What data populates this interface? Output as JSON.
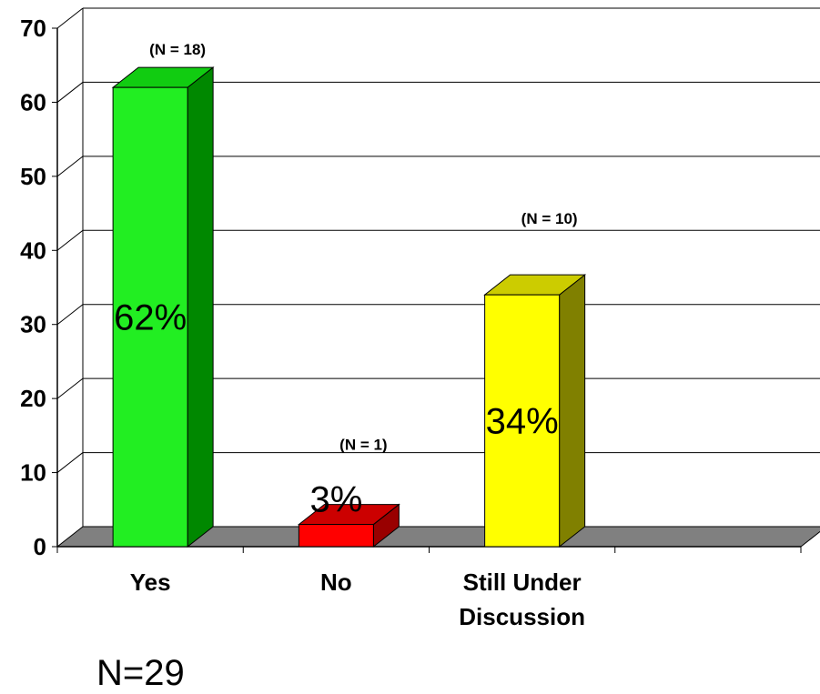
{
  "chart_data": {
    "type": "bar",
    "categories": [
      "Yes",
      "No",
      "Still Under Discussion"
    ],
    "category_lines": [
      [
        "Yes"
      ],
      [
        "No"
      ],
      [
        "Still Under",
        "Discussion"
      ]
    ],
    "values": [
      62,
      3,
      34
    ],
    "value_labels": [
      "62%",
      "3%",
      "34%"
    ],
    "n_labels": [
      "(N = 18)",
      "(N = 1)",
      "(N = 10)"
    ],
    "ylim": [
      0,
      70
    ],
    "yticks": [
      0,
      10,
      20,
      30,
      40,
      50,
      60,
      70
    ],
    "grid": true,
    "bar_colors": [
      {
        "front": "#22ee22",
        "side": "#008800",
        "top": "#11cc11"
      },
      {
        "front": "#ff0000",
        "side": "#990000",
        "top": "#cc0000"
      },
      {
        "front": "#ffff00",
        "side": "#808000",
        "top": "#cccc00"
      }
    ],
    "floor_color": "#808080"
  },
  "footer": {
    "sample_total": "N=29"
  }
}
